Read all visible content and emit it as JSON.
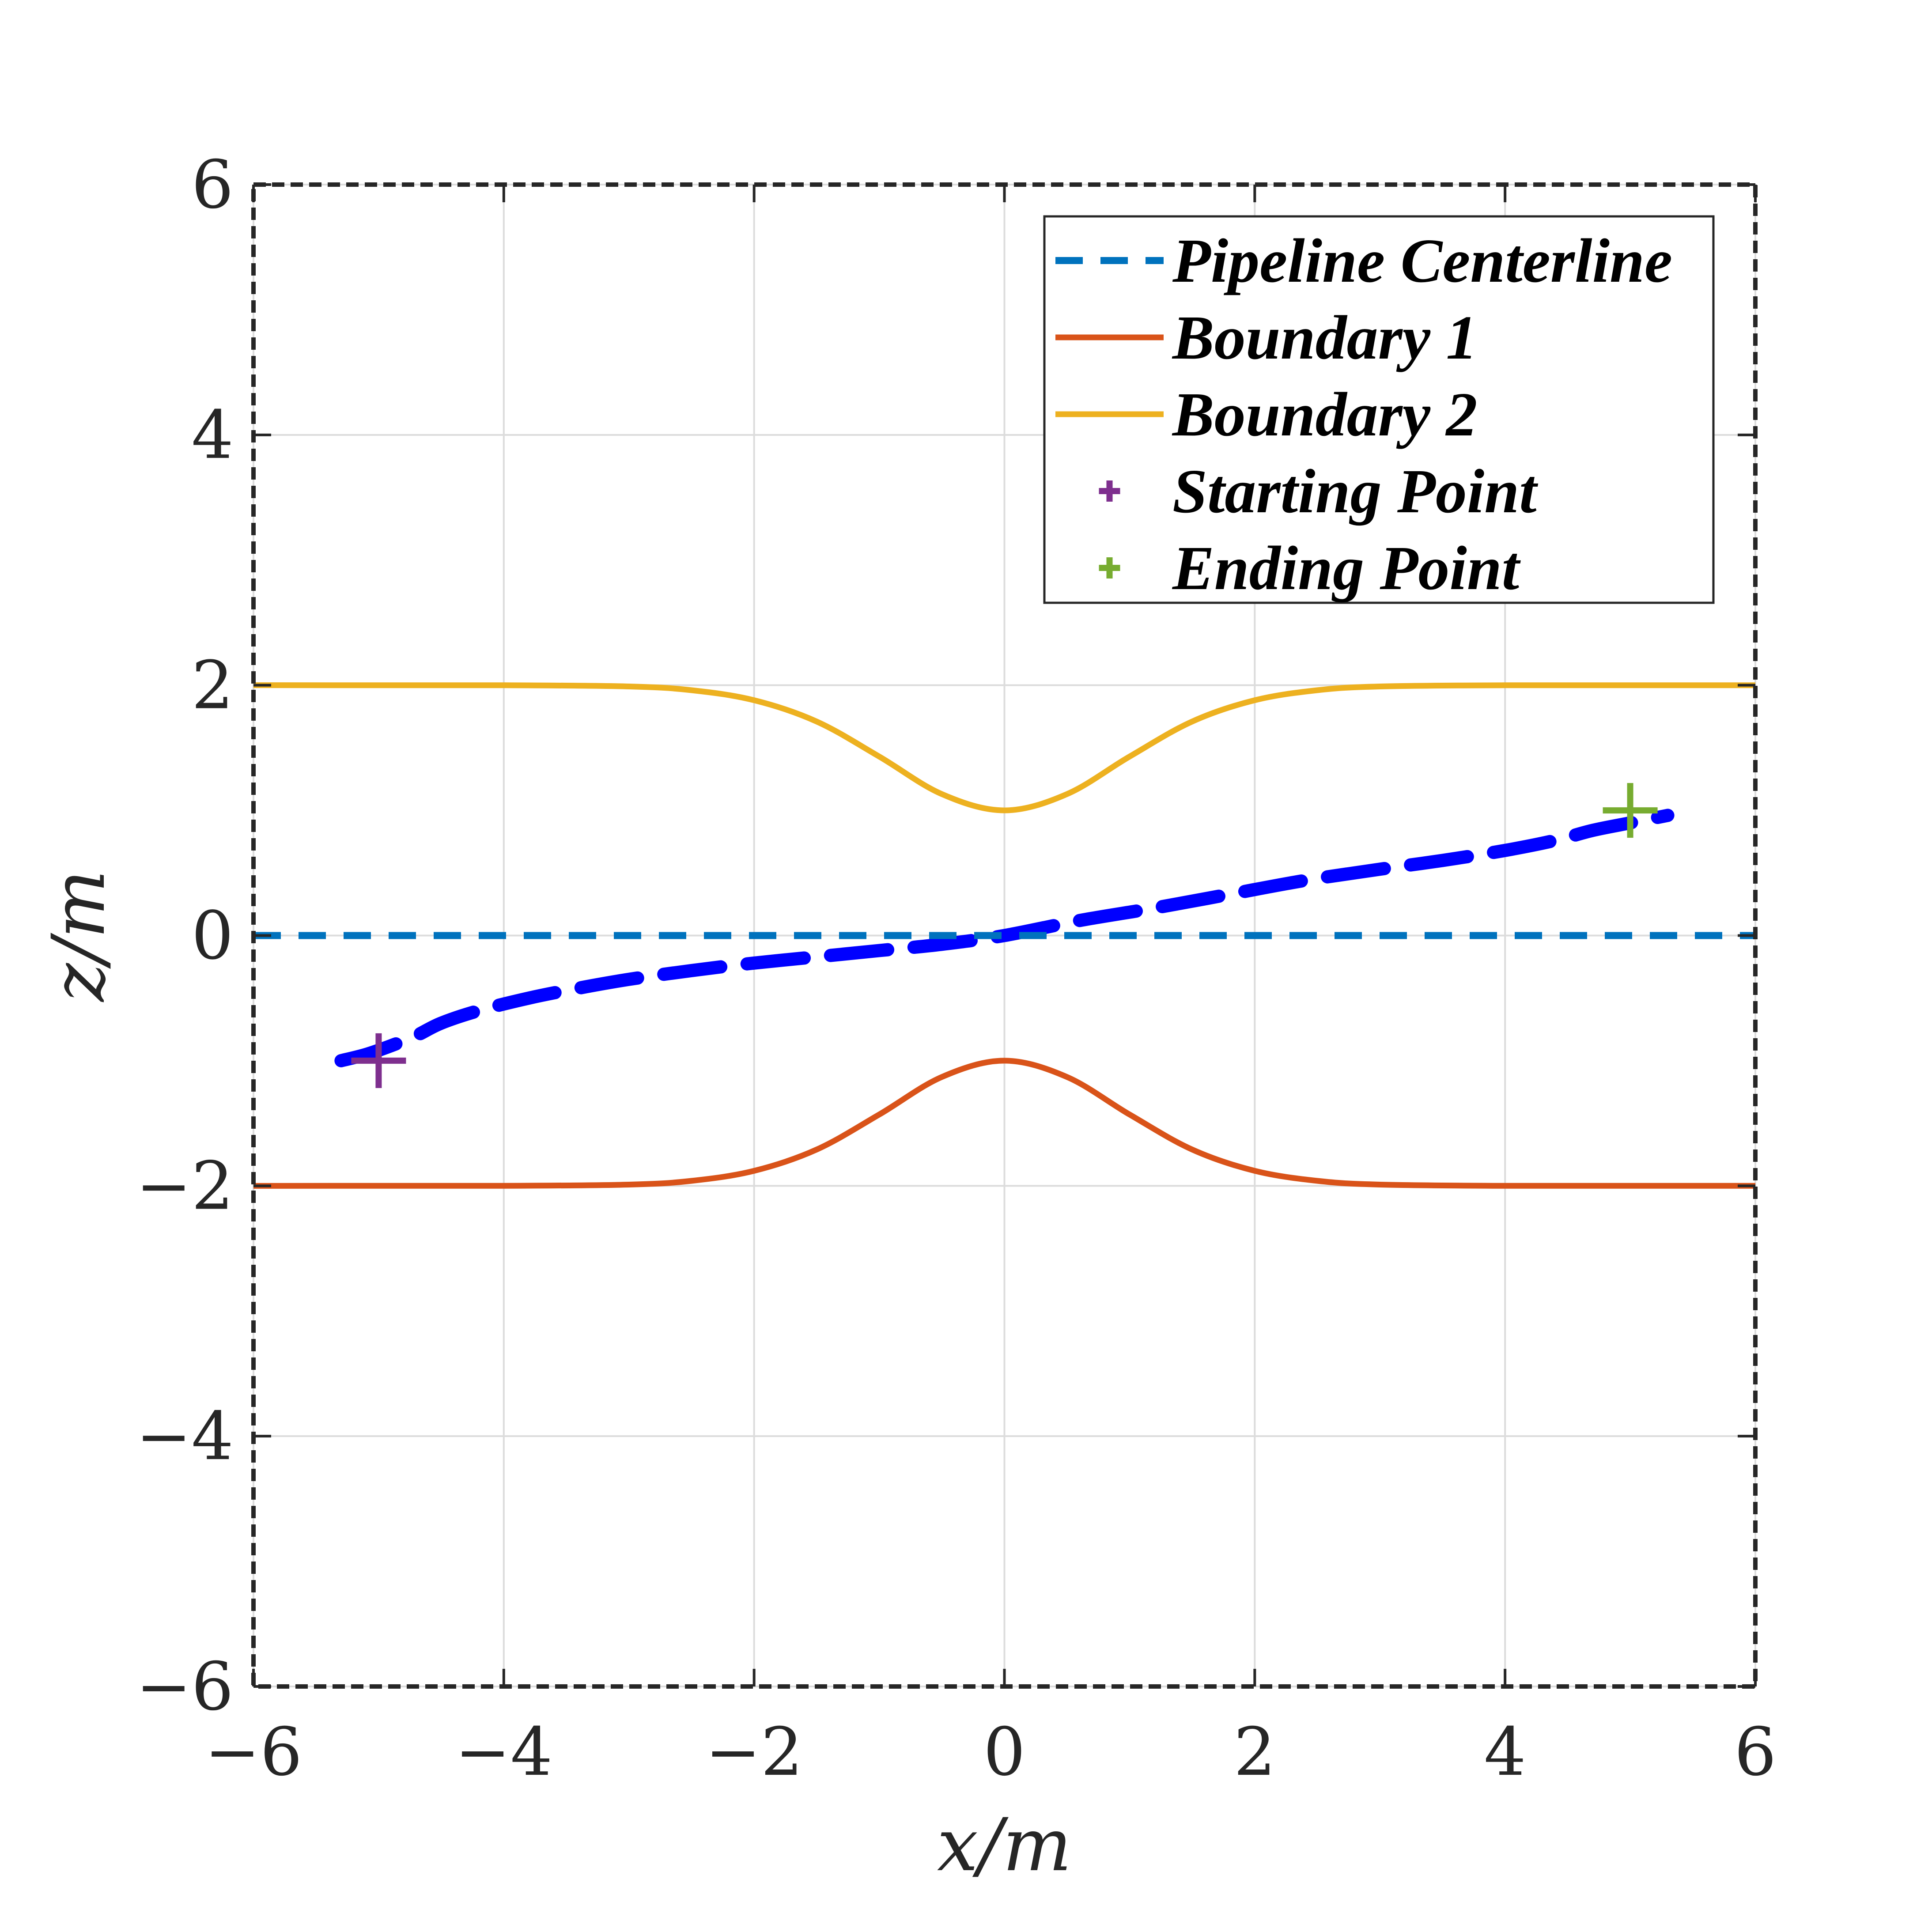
{
  "chart_data": {
    "type": "line",
    "title": "",
    "xlabel": "x/m",
    "ylabel": "z/m",
    "xlim": [
      -6,
      6
    ],
    "ylim": [
      -6,
      6
    ],
    "xticks": [
      -6,
      -4,
      -2,
      0,
      2,
      4,
      6
    ],
    "yticks": [
      -6,
      -4,
      -2,
      0,
      2,
      4,
      6
    ],
    "xtick_labels": [
      "−6",
      "−4",
      "−2",
      "0",
      "2",
      "4",
      "6"
    ],
    "ytick_labels": [
      "−6",
      "−4",
      "−2",
      "0",
      "2",
      "4",
      "6"
    ],
    "grid": true,
    "legend_position": "top-right",
    "series": [
      {
        "name": "Pipeline Centerline",
        "style": "dashed",
        "color": "#0072BD",
        "x": [
          -6,
          6
        ],
        "y": [
          0,
          0
        ]
      },
      {
        "name": "Boundary 1",
        "style": "solid",
        "color": "#D95319",
        "x": [
          -6,
          -5,
          -4,
          -3,
          -2.5,
          -2,
          -1.5,
          -1,
          -0.5,
          0,
          0.5,
          1,
          1.5,
          2,
          2.5,
          3,
          4,
          5,
          6
        ],
        "y": [
          -2,
          -2,
          -2,
          -1.99,
          -1.96,
          -1.88,
          -1.71,
          -1.43,
          -1.13,
          -1,
          -1.13,
          -1.43,
          -1.71,
          -1.88,
          -1.96,
          -1.99,
          -2,
          -2,
          -2
        ]
      },
      {
        "name": "Boundary 2",
        "style": "solid",
        "color": "#EDB120",
        "x": [
          -6,
          -5,
          -4,
          -3,
          -2.5,
          -2,
          -1.5,
          -1,
          -0.5,
          0,
          0.5,
          1,
          1.5,
          2,
          2.5,
          3,
          4,
          5,
          6
        ],
        "y": [
          2,
          2,
          2,
          1.99,
          1.96,
          1.88,
          1.71,
          1.43,
          1.13,
          1,
          1.13,
          1.43,
          1.71,
          1.88,
          1.96,
          1.99,
          2,
          2,
          2
        ]
      },
      {
        "name": "Starting Point",
        "style": "marker",
        "marker": "+",
        "color": "#7E2F8E",
        "x": [
          -5
        ],
        "y": [
          -1
        ]
      },
      {
        "name": "Ending Point",
        "style": "marker",
        "marker": "+",
        "color": "#77AC30",
        "x": [
          5
        ],
        "y": [
          1
        ]
      }
    ],
    "trajectory": {
      "color": "#0000FF",
      "style": "dashed-thick",
      "x": [
        -5.3,
        -5.1,
        -4.9,
        -4.7,
        -4.5,
        -4.2,
        -3.8,
        -3.4,
        -3.0,
        -2.5,
        -2.0,
        -1.5,
        -1.0,
        -0.5,
        0.0,
        0.6,
        1.2,
        1.8,
        2.4,
        3.0,
        3.5,
        4.0,
        4.4,
        4.7,
        5.0,
        5.3
      ],
      "y": [
        -1.0,
        -0.95,
        -0.88,
        -0.8,
        -0.7,
        -0.6,
        -0.5,
        -0.42,
        -0.35,
        -0.28,
        -0.22,
        -0.17,
        -0.12,
        -0.07,
        0.0,
        0.12,
        0.22,
        0.33,
        0.44,
        0.53,
        0.6,
        0.68,
        0.76,
        0.84,
        0.9,
        0.96
      ]
    }
  }
}
